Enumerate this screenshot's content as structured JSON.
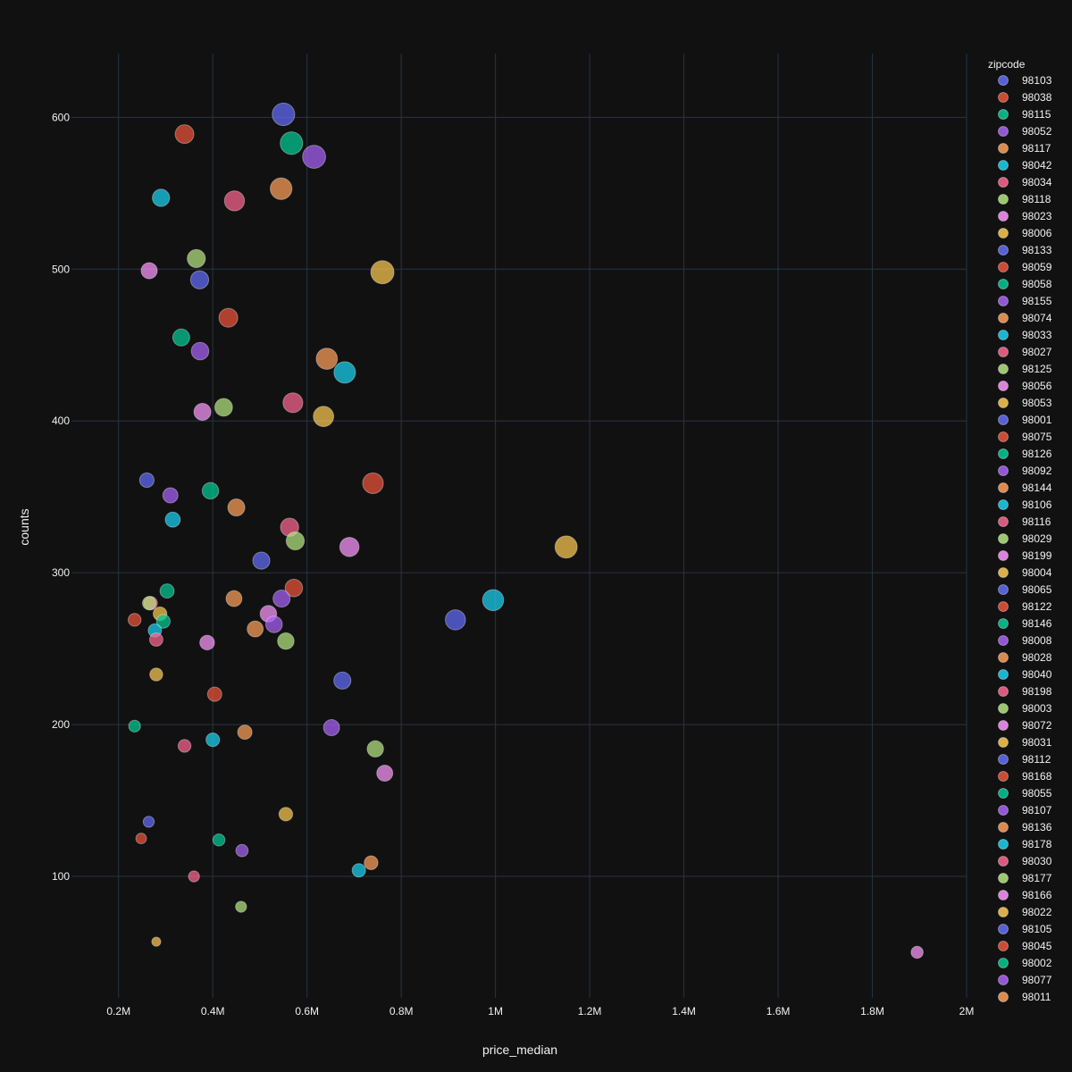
{
  "chart_data": {
    "type": "scatter",
    "title": "",
    "xlabel": "price_median",
    "ylabel": "counts",
    "legend_title": "zipcode",
    "legend_placement": "right",
    "grid": true,
    "xlim": [
      0.1,
      2.0
    ],
    "ylim": [
      20,
      642
    ],
    "x_ticks": [
      0.2,
      0.4,
      0.6,
      0.8,
      1.0,
      1.2,
      1.4,
      1.6,
      1.8,
      2.0
    ],
    "x_tick_labels": [
      "0.2M",
      "0.4M",
      "0.6M",
      "0.8M",
      "1M",
      "1.2M",
      "1.4M",
      "1.6M",
      "1.8M",
      "2M"
    ],
    "y_ticks": [
      100,
      200,
      300,
      400,
      500,
      600
    ],
    "y_tick_labels": [
      "100",
      "200",
      "300",
      "400",
      "500",
      "600"
    ],
    "palette": [
      "#636efa",
      "#EF553B",
      "#00cc96",
      "#ab63fa",
      "#FFA15A",
      "#19d3f3",
      "#FF6692",
      "#B6E880",
      "#FF97FF",
      "#FECB52"
    ],
    "series": [
      {
        "name": "98103",
        "x": 0.55,
        "y": 602
      },
      {
        "name": "98038",
        "x": 0.34,
        "y": 589
      },
      {
        "name": "98115",
        "x": 0.567,
        "y": 583
      },
      {
        "name": "98052",
        "x": 0.615,
        "y": 574
      },
      {
        "name": "98117",
        "x": 0.545,
        "y": 553
      },
      {
        "name": "98042",
        "x": 0.29,
        "y": 547
      },
      {
        "name": "98034",
        "x": 0.446,
        "y": 545
      },
      {
        "name": "98118",
        "x": 0.365,
        "y": 507
      },
      {
        "name": "98023",
        "x": 0.265,
        "y": 499
      },
      {
        "name": "98006",
        "x": 0.76,
        "y": 498
      },
      {
        "name": "98133",
        "x": 0.372,
        "y": 493
      },
      {
        "name": "98059",
        "x": 0.433,
        "y": 468
      },
      {
        "name": "98058",
        "x": 0.333,
        "y": 455
      },
      {
        "name": "98155",
        "x": 0.373,
        "y": 446
      },
      {
        "name": "98074",
        "x": 0.642,
        "y": 441
      },
      {
        "name": "98033",
        "x": 0.68,
        "y": 432
      },
      {
        "name": "98027",
        "x": 0.57,
        "y": 412
      },
      {
        "name": "98125",
        "x": 0.423,
        "y": 409
      },
      {
        "name": "98056",
        "x": 0.378,
        "y": 406
      },
      {
        "name": "98053",
        "x": 0.635,
        "y": 403
      },
      {
        "name": "98001",
        "x": 0.26,
        "y": 361
      },
      {
        "name": "98075",
        "x": 0.74,
        "y": 359
      },
      {
        "name": "98126",
        "x": 0.395,
        "y": 354
      },
      {
        "name": "98092",
        "x": 0.31,
        "y": 351
      },
      {
        "name": "98144",
        "x": 0.45,
        "y": 343
      },
      {
        "name": "98106",
        "x": 0.315,
        "y": 335
      },
      {
        "name": "98116",
        "x": 0.563,
        "y": 330
      },
      {
        "name": "98029",
        "x": 0.575,
        "y": 321
      },
      {
        "name": "98199",
        "x": 0.69,
        "y": 317
      },
      {
        "name": "98004",
        "x": 1.15,
        "y": 317
      },
      {
        "name": "98065",
        "x": 0.503,
        "y": 308
      },
      {
        "name": "98122",
        "x": 0.572,
        "y": 290
      },
      {
        "name": "98146",
        "x": 0.303,
        "y": 288
      },
      {
        "name": "98008",
        "x": 0.546,
        "y": 283
      },
      {
        "name": "98028",
        "x": 0.445,
        "y": 283
      },
      {
        "name": "98040",
        "x": 0.995,
        "y": 282
      },
      {
        "name": "98198",
        "x": 0.268,
        "y": 280
      },
      {
        "name": "98003",
        "x": 0.265,
        "y": 280
      },
      {
        "name": "98072",
        "x": 0.518,
        "y": 273
      },
      {
        "name": "98031",
        "x": 0.288,
        "y": 273
      },
      {
        "name": "98112",
        "x": 0.915,
        "y": 269
      },
      {
        "name": "98168",
        "x": 0.234,
        "y": 269
      },
      {
        "name": "98055",
        "x": 0.295,
        "y": 268
      },
      {
        "name": "98107",
        "x": 0.53,
        "y": 266
      },
      {
        "name": "98136",
        "x": 0.49,
        "y": 263
      },
      {
        "name": "98178",
        "x": 0.277,
        "y": 262
      },
      {
        "name": "98030",
        "x": 0.28,
        "y": 256
      },
      {
        "name": "98177",
        "x": 0.555,
        "y": 255
      },
      {
        "name": "98166",
        "x": 0.388,
        "y": 254
      },
      {
        "name": "98022",
        "x": 0.28,
        "y": 233
      },
      {
        "name": "98105",
        "x": 0.675,
        "y": 229
      },
      {
        "name": "98045",
        "x": 0.404,
        "y": 220
      },
      {
        "name": "98002",
        "x": 0.234,
        "y": 199
      },
      {
        "name": "98077",
        "x": 0.652,
        "y": 198
      },
      {
        "name": "98011",
        "x": 0.468,
        "y": 195
      },
      {
        "name": "",
        "x": 0.4,
        "y": 190
      },
      {
        "name": "",
        "x": 0.34,
        "y": 186
      },
      {
        "name": "",
        "x": 0.745,
        "y": 184
      },
      {
        "name": "",
        "x": 0.765,
        "y": 168
      },
      {
        "name": "",
        "x": 0.555,
        "y": 141
      },
      {
        "name": "",
        "x": 0.264,
        "y": 136
      },
      {
        "name": "",
        "x": 0.248,
        "y": 125
      },
      {
        "name": "",
        "x": 0.413,
        "y": 124
      },
      {
        "name": "",
        "x": 0.462,
        "y": 117
      },
      {
        "name": "",
        "x": 0.736,
        "y": 109
      },
      {
        "name": "",
        "x": 0.71,
        "y": 104
      },
      {
        "name": "",
        "x": 0.36,
        "y": 100
      },
      {
        "name": "",
        "x": 0.46,
        "y": 80
      },
      {
        "name": "",
        "x": 1.895,
        "y": 50
      },
      {
        "name": "",
        "x": 0.28,
        "y": 57
      }
    ]
  }
}
